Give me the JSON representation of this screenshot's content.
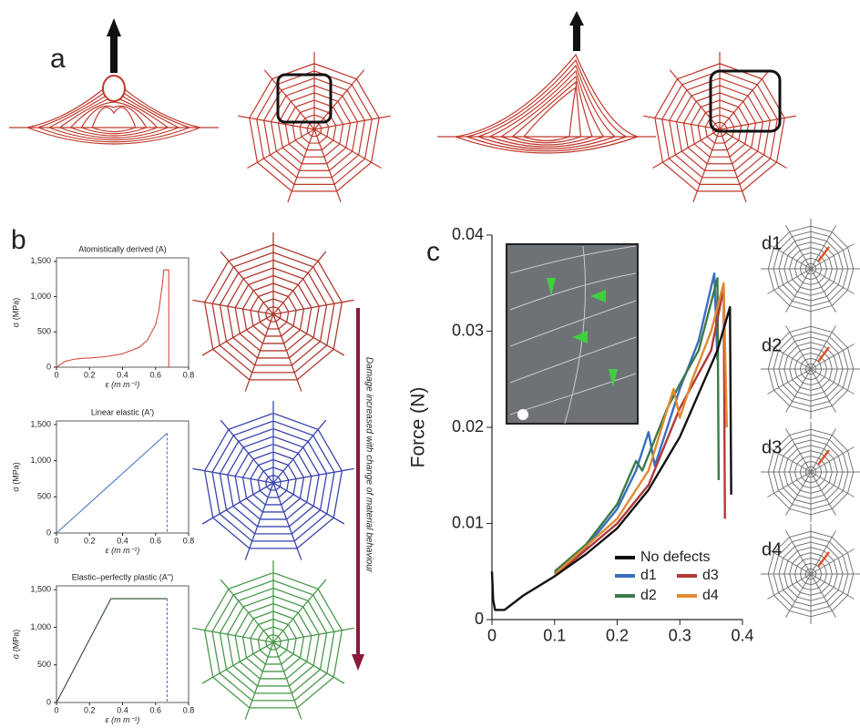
{
  "panel_labels": [
    "a",
    "b",
    "c"
  ],
  "damage_arrow_label": "Damage increased with change of material behaviour",
  "chart_data": [
    {
      "type": "line",
      "title": "Atomistically derived (A)",
      "xlabel": "ε (m m⁻¹)",
      "ylabel": "σ (MPa)",
      "xlim": [
        0,
        0.8
      ],
      "xticks": [
        0,
        0.2,
        0.4,
        0.6,
        0.8
      ],
      "ylim": [
        0,
        1550
      ],
      "yticks": [
        0,
        500,
        {
          "value": 1000,
          "label": "1,000"
        },
        {
          "value": 1500,
          "label": "1,500"
        }
      ],
      "frame": true,
      "series": [
        {
          "color": "#d24b3c",
          "dashed": false,
          "x": [
            0,
            0.05,
            0.1,
            0.15,
            0.2,
            0.3,
            0.4,
            0.5,
            0.55,
            0.6,
            0.62,
            0.64,
            0.65,
            0.68,
            0.68
          ],
          "values": [
            0,
            80,
            110,
            125,
            130,
            150,
            190,
            280,
            380,
            600,
            800,
            1150,
            1380,
            1380,
            0
          ]
        }
      ]
    },
    {
      "type": "line",
      "title": "Linear elastic (A')",
      "xlabel": "ε (m m⁻¹)",
      "ylabel": "σ (MPa)",
      "xlim": [
        0,
        0.8
      ],
      "xticks": [
        0,
        0.2,
        0.4,
        0.6,
        0.8
      ],
      "ylim": [
        0,
        1550
      ],
      "yticks": [
        0,
        500,
        {
          "value": 1000,
          "label": "1,000"
        },
        {
          "value": 1500,
          "label": "1,500"
        }
      ],
      "frame": true,
      "series": [
        {
          "color": "#4a78c8",
          "dashed": false,
          "x": [
            0,
            0.67
          ],
          "values": [
            0,
            1380
          ]
        },
        {
          "color": "#4a78c8",
          "dashed": true,
          "x": [
            0.67,
            0.67
          ],
          "values": [
            1380,
            0
          ]
        }
      ]
    },
    {
      "type": "line",
      "title": "Elastic–perfectly plastic (A'')",
      "xlabel": "ε (m m⁻¹)",
      "ylabel": "σ (MPa)",
      "xlim": [
        0,
        0.8
      ],
      "xticks": [
        0,
        0.2,
        0.4,
        0.6,
        0.8
      ],
      "ylim": [
        0,
        1550
      ],
      "yticks": [
        0,
        500,
        {
          "value": 1000,
          "label": "1,000"
        },
        {
          "value": 1500,
          "label": "1,500"
        }
      ],
      "frame": true,
      "series": [
        {
          "color": "#2d4a30",
          "dashed": false,
          "x": [
            0,
            0.33,
            0.67
          ],
          "values": [
            0,
            1380,
            1380
          ]
        },
        {
          "color": "#4a78c8",
          "dashed": true,
          "x": [
            0.67,
            0.67
          ],
          "values": [
            1380,
            0
          ]
        }
      ]
    },
    {
      "type": "line",
      "ylabel": "Force (N)",
      "xlim": [
        0,
        0.4
      ],
      "xticks": [
        0,
        0.1,
        0.2,
        0.3,
        0.4
      ],
      "ylim": [
        0,
        0.04
      ],
      "yticks": [
        0,
        0.01,
        0.02,
        0.03,
        0.04
      ],
      "frame": false,
      "legend": "lower right",
      "series": [
        {
          "name": "d1",
          "color": "#3a6fbf",
          "dashed": false,
          "x": [
            0.1,
            0.15,
            0.2,
            0.23,
            0.25,
            0.26,
            0.3,
            0.33,
            0.355,
            0.36
          ],
          "values": [
            0.0048,
            0.0075,
            0.0115,
            0.0155,
            0.0195,
            0.016,
            0.024,
            0.029,
            0.036,
            0.027
          ]
        },
        {
          "name": "d2",
          "color": "#3a7a4a",
          "dashed": false,
          "x": [
            0.1,
            0.15,
            0.2,
            0.23,
            0.24,
            0.28,
            0.3,
            0.33,
            0.36,
            0.362
          ],
          "values": [
            0.005,
            0.0078,
            0.012,
            0.0165,
            0.0155,
            0.022,
            0.0245,
            0.028,
            0.0355,
            0.0145
          ]
        },
        {
          "name": "d3",
          "color": "#b03a3a",
          "dashed": false,
          "x": [
            0.1,
            0.2,
            0.25,
            0.3,
            0.35,
            0.37,
            0.372
          ],
          "values": [
            0.0045,
            0.01,
            0.014,
            0.022,
            0.028,
            0.0345,
            0.0105
          ]
        },
        {
          "name": "d4",
          "color": "#e08a30",
          "dashed": false,
          "x": [
            0.1,
            0.2,
            0.25,
            0.29,
            0.3,
            0.32,
            0.35,
            0.37,
            0.375
          ],
          "values": [
            0.0047,
            0.0105,
            0.0155,
            0.024,
            0.021,
            0.025,
            0.03,
            0.035,
            0.02
          ]
        },
        {
          "name": "No defects",
          "color": "#111111",
          "dashed": false,
          "x": [
            0,
            0.002,
            0.005,
            0.02,
            0.05,
            0.1,
            0.15,
            0.2,
            0.25,
            0.3,
            0.33,
            0.36,
            0.38,
            0.382
          ],
          "values": [
            0.005,
            0.002,
            0.001,
            0.001,
            0.0025,
            0.0045,
            0.0068,
            0.0095,
            0.0135,
            0.019,
            0.0235,
            0.028,
            0.0325,
            0.013
          ]
        }
      ]
    }
  ]
}
